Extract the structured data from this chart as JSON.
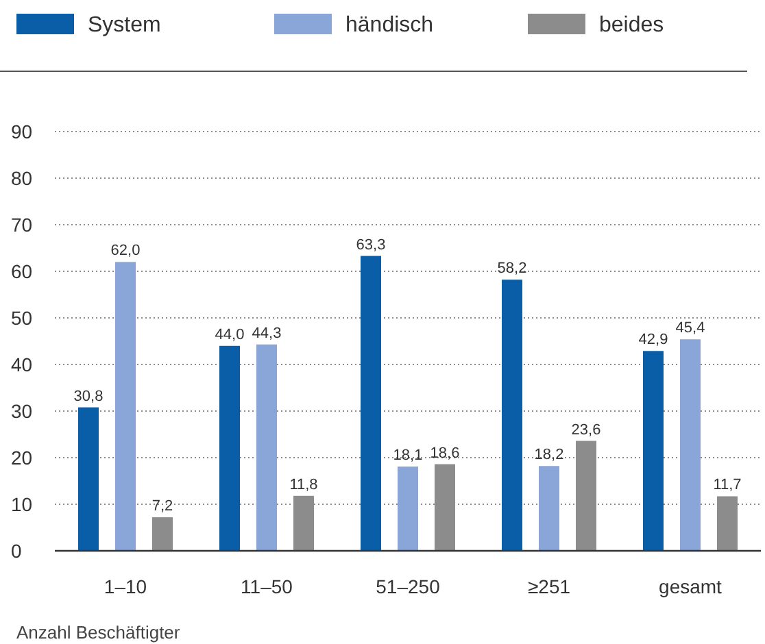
{
  "chart_data": {
    "type": "bar",
    "xlabel": "Anzahl Beschäftigter",
    "categories": [
      "1–10",
      "11–50",
      "51–250",
      "≥251",
      "gesamt"
    ],
    "series": [
      {
        "name": "System",
        "color": "#0a5ea8",
        "values": [
          30.8,
          44.0,
          63.3,
          58.2,
          42.9
        ],
        "value_labels": [
          "30,8",
          "44,0",
          "63,3",
          "58,2",
          "42,9"
        ]
      },
      {
        "name": "händisch",
        "color": "#8aa5d8",
        "values": [
          62.0,
          44.3,
          18.1,
          18.2,
          45.4
        ],
        "value_labels": [
          "62,0",
          "44,3",
          "18,1",
          "18,2",
          "45,4"
        ]
      },
      {
        "name": "beides",
        "color": "#8c8c8c",
        "values": [
          7.2,
          11.8,
          18.6,
          23.6,
          11.7
        ],
        "value_labels": [
          "7,2",
          "11,8",
          "18,6",
          "23,6",
          "11,7"
        ]
      }
    ],
    "ylim": [
      0,
      90
    ],
    "yticks": [
      0,
      10,
      20,
      30,
      40,
      50,
      60,
      70,
      80,
      90
    ],
    "grid": "y",
    "legend": "top"
  }
}
